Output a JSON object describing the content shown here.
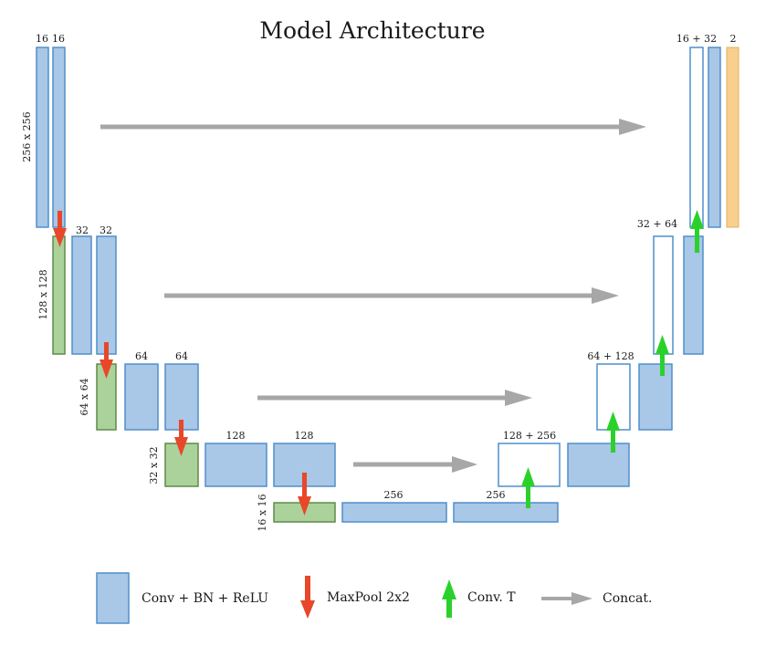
{
  "title": "Model Architecture",
  "colors": {
    "conv": "#a9c7e6",
    "conv_stroke": "#4f8fcc",
    "pool": "#acd29b",
    "pool_stroke": "#5f8a48",
    "concat_box": "#ffffff",
    "output": "#f8cf8f",
    "output_stroke": "#e3ae5d",
    "down_arrow": "#e8472a",
    "up_arrow": "#2bd12b",
    "concat_arrow": "#a7a7a7"
  },
  "labels": {
    "l1_c1": "16",
    "l1_c2": "16",
    "l1_size": "256 x 256",
    "l2_c1": "32",
    "l2_c2": "32",
    "l2_size": "128 x 128",
    "l3_c1": "64",
    "l3_c2": "64",
    "l3_size": "64 x 64",
    "l4_c1": "128",
    "l4_c2": "128",
    "l4_size": "32 x 32",
    "l5_c1": "256",
    "l5_c2": "256",
    "l5_size": "16 x 16",
    "dec4_concat": "128 + 256",
    "dec3_concat": "64 + 128",
    "dec2_concat": "32 + 64",
    "dec1_concat": "16 + 32",
    "output_channels": "2"
  },
  "legend": {
    "conv": "Conv + BN + ReLU",
    "maxpool": "MaxPool 2x2",
    "convt": "Conv. T",
    "concat": "Concat."
  }
}
